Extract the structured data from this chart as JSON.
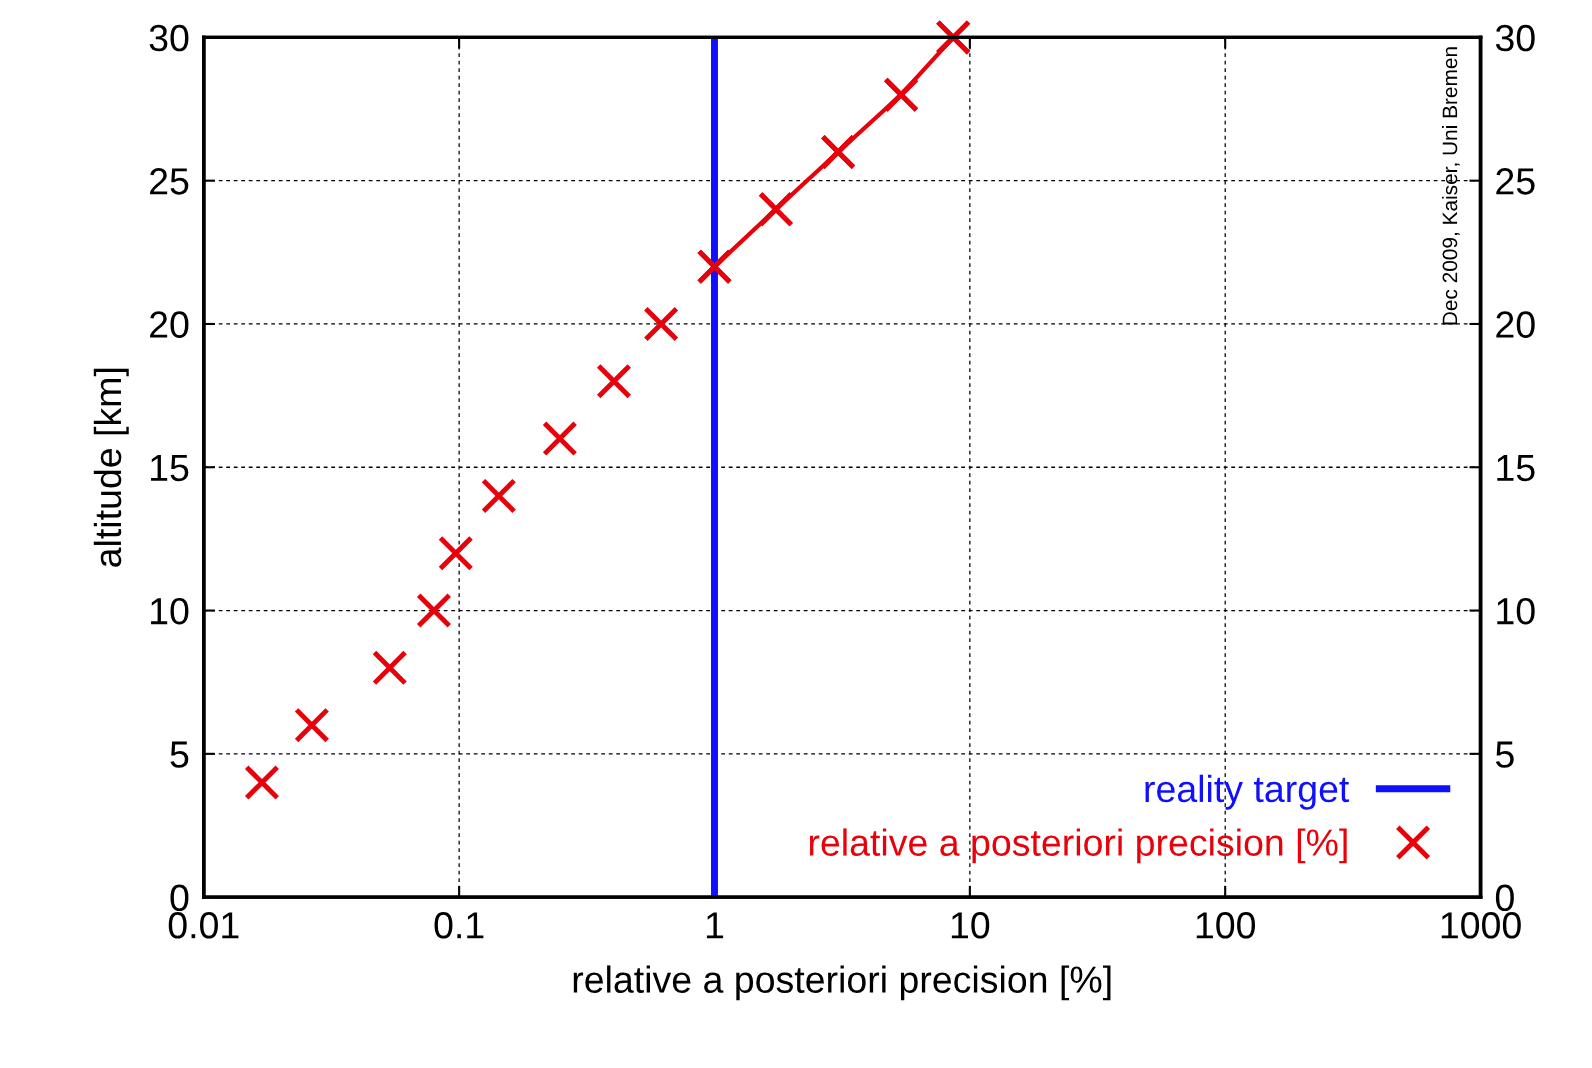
{
  "chart_data": {
    "type": "scatter",
    "xlabel": "relative a posteriori precision [%]",
    "ylabel": "altitude [km]",
    "log": "x",
    "xlim": [
      0.01,
      1000
    ],
    "xticks": [
      0.01,
      0.1,
      1,
      10,
      100,
      1000
    ],
    "ylim": [
      0,
      30
    ],
    "yticks": [
      0,
      5,
      10,
      15,
      20,
      25,
      30
    ],
    "y2lim": [
      0,
      30
    ],
    "y2ticks": [
      0,
      5,
      10,
      15,
      20,
      25,
      30
    ],
    "grid": true,
    "legend": "bottom right",
    "series": [
      {
        "name": "relative a posteriori precision [%]",
        "marker": "cross",
        "color": "#e8000b",
        "x": [
          0.0169,
          0.0265,
          0.0535,
          0.0797,
          0.097,
          0.143,
          0.248,
          0.404,
          0.618,
          1.0,
          1.74,
          3.05,
          5.38,
          8.61
        ],
        "values": [
          4,
          6,
          8,
          10,
          12,
          14,
          16,
          18,
          20,
          22,
          24,
          26,
          28,
          30
        ]
      },
      {
        "type": "line",
        "color": "#e8000b",
        "line_style": "solid",
        "marker": "cross",
        "x": [
          1.0,
          1.74,
          3.05,
          5.38,
          8.61
        ],
        "values": [
          22,
          24,
          26,
          28,
          30
        ]
      }
    ],
    "ref_lines": [
      {
        "axis": "x",
        "value": 1,
        "label": "reality target",
        "color": "#1010ff",
        "line_style": "solid"
      }
    ],
    "annotations": [
      "Dec 2009, Kaiser, Uni Bremen"
    ]
  }
}
